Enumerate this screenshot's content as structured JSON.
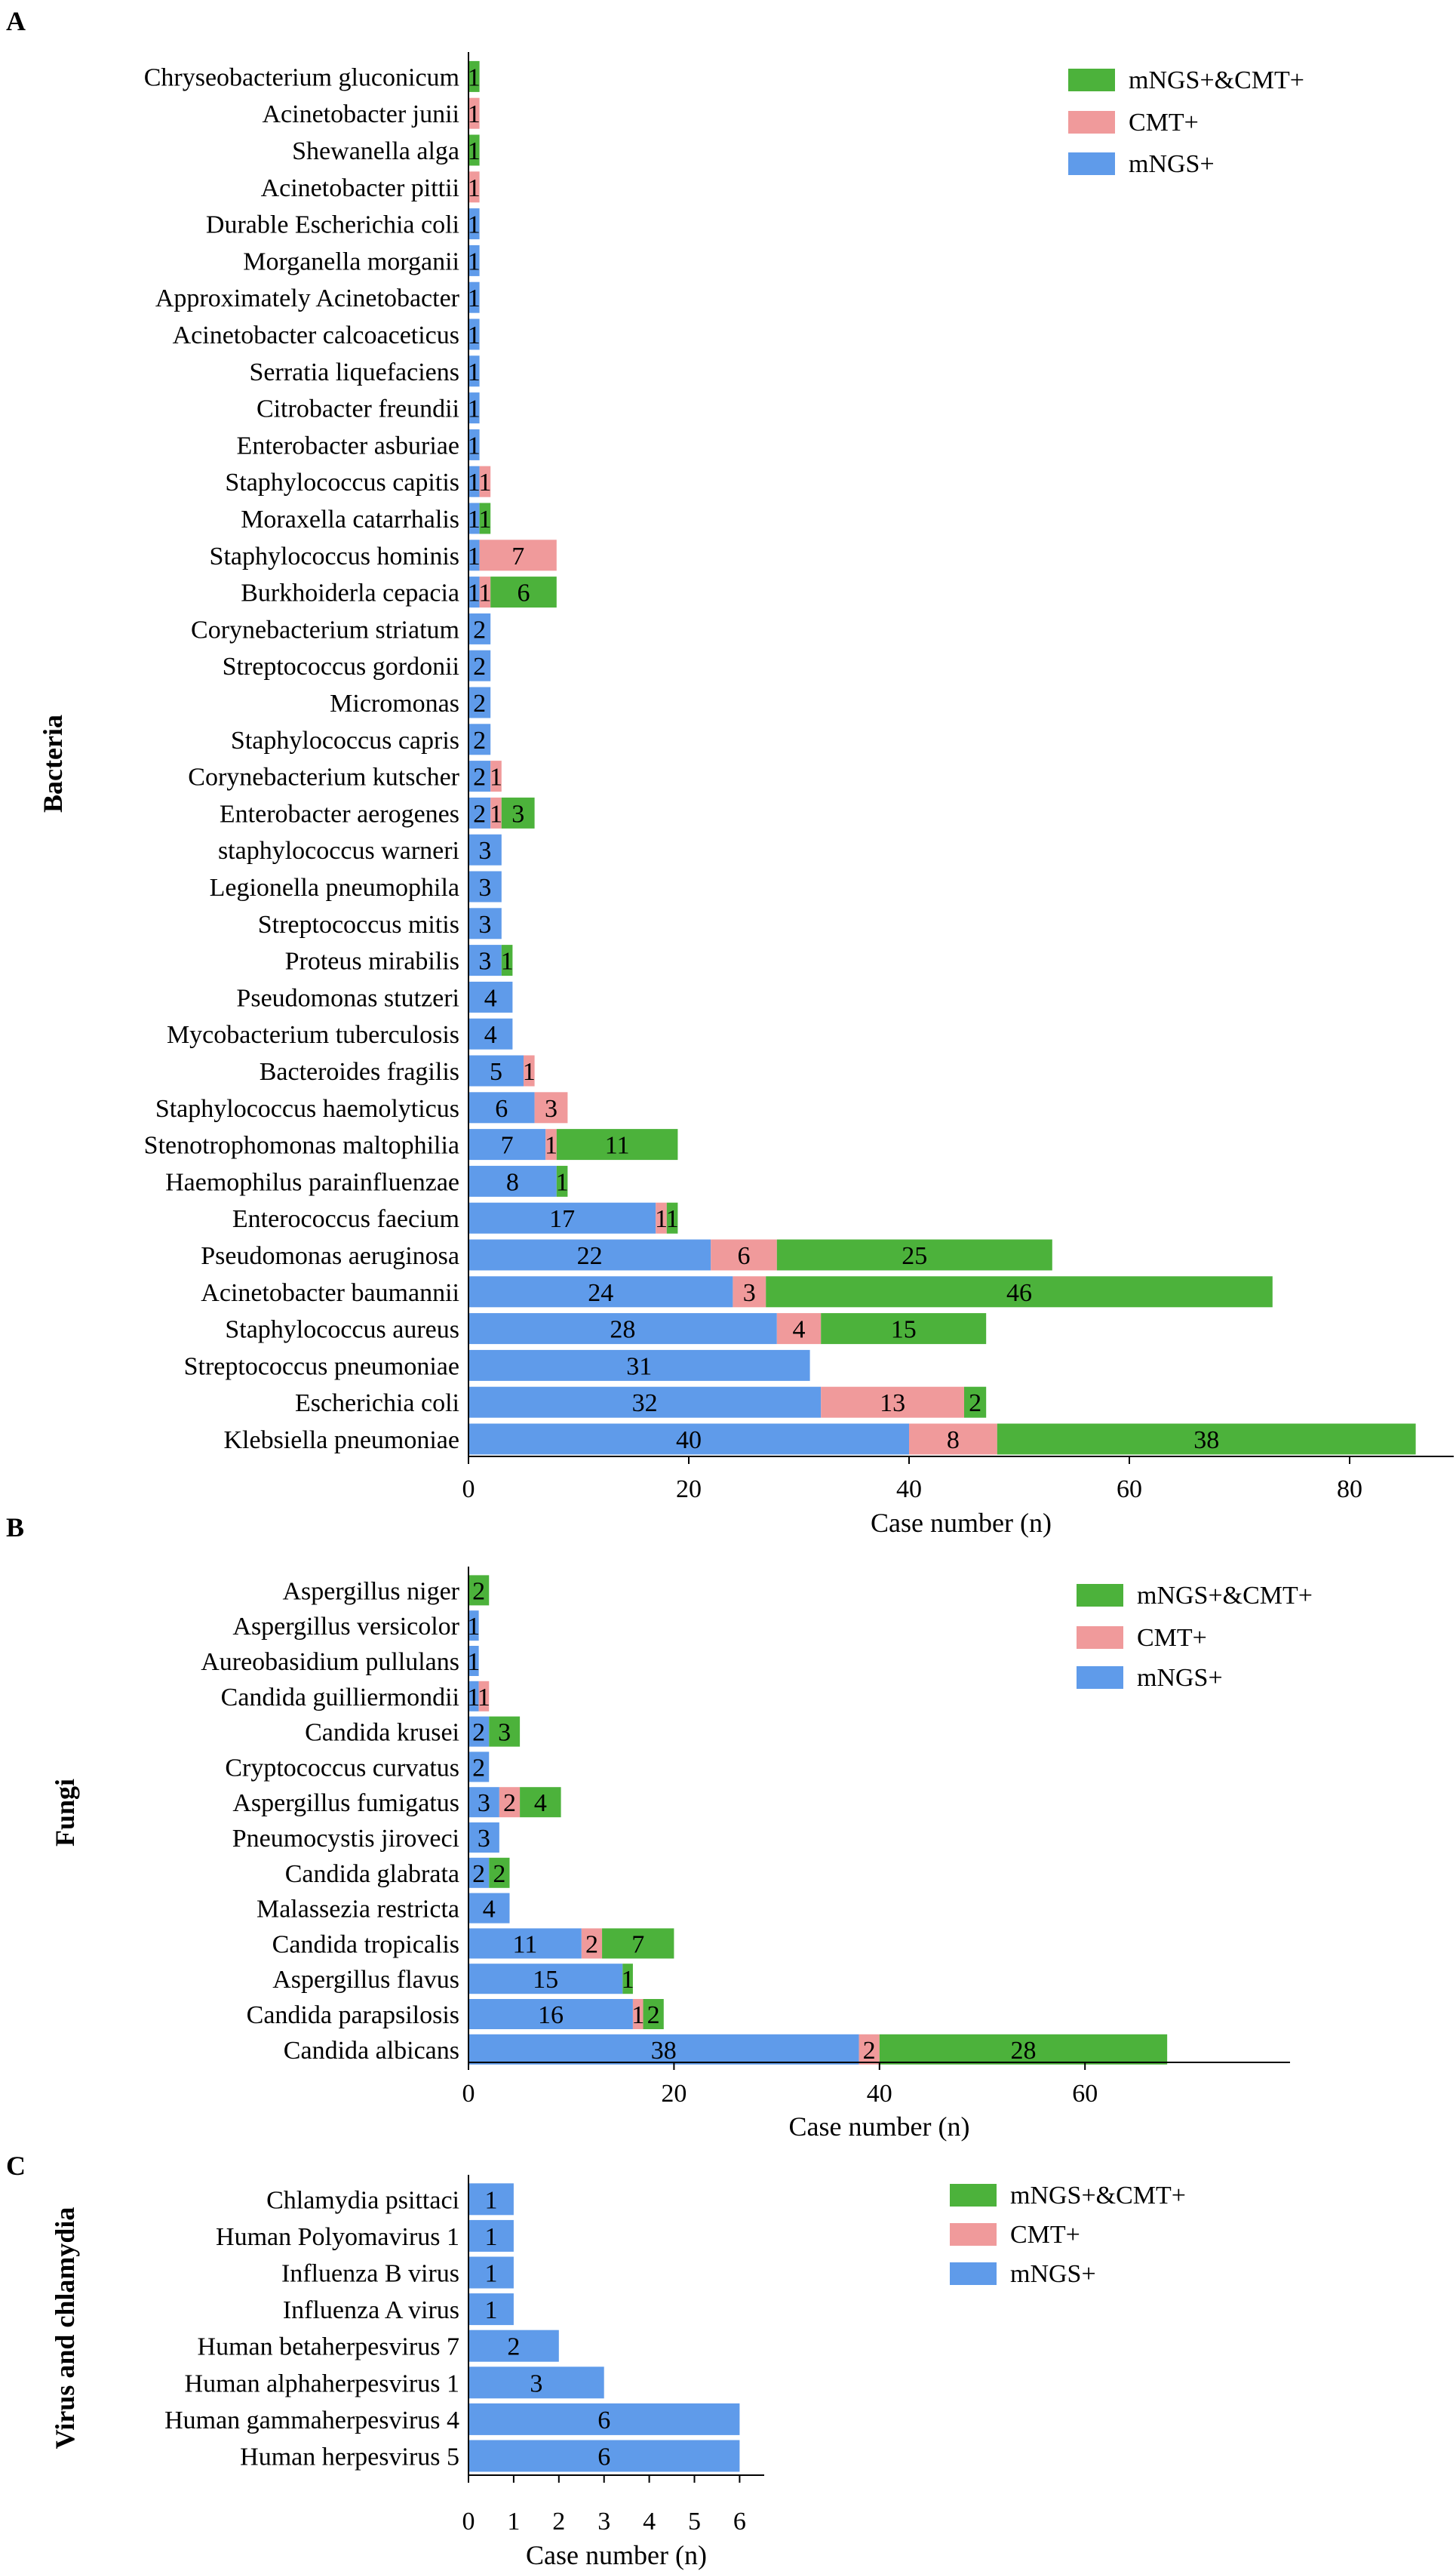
{
  "legend": {
    "both": "mNGS+&CMT+",
    "cmt": "CMT+",
    "mngs": "mNGS+"
  },
  "colors": {
    "both": "#4cb23b",
    "cmt": "#f09a9b",
    "mngs": "#5f9bea"
  },
  "chart_data": [
    {
      "type": "bar",
      "stacked": true,
      "orientation": "horizontal",
      "panel": "A",
      "ylabel": "Bacteria",
      "xlabel": "Case number (n)",
      "xlim": [
        0,
        82
      ],
      "xticks": [
        0,
        20,
        40,
        60,
        80
      ],
      "legend_position": "top-right",
      "series_order": [
        "mNGS+",
        "CMT+",
        "mNGS+&CMT+"
      ],
      "rows": [
        {
          "label": "Chryseobacterium gluconicum",
          "values": [
            0,
            0,
            1
          ]
        },
        {
          "label": "Acinetobacter junii",
          "values": [
            0,
            1,
            0
          ]
        },
        {
          "label": "Shewanella alga",
          "values": [
            0,
            0,
            1
          ]
        },
        {
          "label": "Acinetobacter pittii",
          "values": [
            0,
            1,
            0
          ]
        },
        {
          "label": "Durable Escherichia coli",
          "values": [
            1,
            0,
            0
          ]
        },
        {
          "label": "Morganella morganii",
          "values": [
            1,
            0,
            0
          ]
        },
        {
          "label": "Approximately Acinetobacter",
          "values": [
            1,
            0,
            0
          ]
        },
        {
          "label": "Acinetobacter calcoaceticus",
          "values": [
            1,
            0,
            0
          ]
        },
        {
          "label": "Serratia liquefaciens",
          "values": [
            1,
            0,
            0
          ]
        },
        {
          "label": "Citrobacter freundii",
          "values": [
            1,
            0,
            0
          ]
        },
        {
          "label": "Enterobacter asburiae",
          "values": [
            1,
            0,
            0
          ]
        },
        {
          "label": "Staphylococcus capitis",
          "values": [
            1,
            1,
            0
          ]
        },
        {
          "label": "Moraxella catarrhalis",
          "values": [
            1,
            0,
            1
          ]
        },
        {
          "label": "Staphylococcus hominis",
          "values": [
            1,
            7,
            0
          ]
        },
        {
          "label": "Burkhoiderla cepacia",
          "values": [
            1,
            1,
            6
          ]
        },
        {
          "label": "Corynebacterium striatum",
          "values": [
            2,
            0,
            0
          ]
        },
        {
          "label": "Streptococcus gordonii",
          "values": [
            2,
            0,
            0
          ]
        },
        {
          "label": "Micromonas",
          "values": [
            2,
            0,
            0
          ]
        },
        {
          "label": "Staphylococcus capris",
          "values": [
            2,
            0,
            0
          ]
        },
        {
          "label": "Corynebacterium kutscher",
          "values": [
            2,
            1,
            0
          ]
        },
        {
          "label": "Enterobacter aerogenes",
          "values": [
            2,
            1,
            3
          ]
        },
        {
          "label": "staphylococcus warneri",
          "values": [
            3,
            0,
            0
          ]
        },
        {
          "label": "Legionella pneumophila",
          "values": [
            3,
            0,
            0
          ]
        },
        {
          "label": "Streptococcus mitis",
          "values": [
            3,
            0,
            0
          ]
        },
        {
          "label": "Proteus mirabilis",
          "values": [
            3,
            0,
            1
          ]
        },
        {
          "label": "Pseudomonas stutzeri",
          "values": [
            4,
            0,
            0
          ]
        },
        {
          "label": "Mycobacterium tuberculosis",
          "values": [
            4,
            0,
            0
          ]
        },
        {
          "label": "Bacteroides fragilis",
          "values": [
            5,
            1,
            0
          ]
        },
        {
          "label": "Staphylococcus haemolyticus",
          "values": [
            6,
            3,
            0
          ]
        },
        {
          "label": "Stenotrophomonas maltophilia",
          "values": [
            7,
            1,
            11
          ]
        },
        {
          "label": "Haemophilus parainfluenzae",
          "values": [
            8,
            0,
            1
          ]
        },
        {
          "label": "Enterococcus faecium",
          "values": [
            17,
            1,
            1
          ]
        },
        {
          "label": "Pseudomonas aeruginosa",
          "values": [
            22,
            6,
            25
          ]
        },
        {
          "label": "Acinetobacter baumannii",
          "values": [
            24,
            3,
            46
          ]
        },
        {
          "label": "Staphylococcus aureus",
          "values": [
            28,
            4,
            15
          ]
        },
        {
          "label": "Streptococcus pneumoniae",
          "values": [
            31,
            0,
            0
          ]
        },
        {
          "label": "Escherichia coli",
          "values": [
            32,
            13,
            2
          ]
        },
        {
          "label": "Klebsiella pneumoniae",
          "values": [
            40,
            8,
            38
          ]
        }
      ]
    },
    {
      "type": "bar",
      "stacked": true,
      "orientation": "horizontal",
      "panel": "B",
      "ylabel": "Fungi",
      "xlabel": "Case number (n)",
      "xlim": [
        0,
        74
      ],
      "xticks": [
        0,
        20,
        40,
        60
      ],
      "legend_position": "top-right",
      "series_order": [
        "mNGS+",
        "CMT+",
        "mNGS+&CMT+"
      ],
      "rows": [
        {
          "label": "Aspergillus niger",
          "values": [
            0,
            0,
            2
          ]
        },
        {
          "label": "Aspergillus versicolor",
          "values": [
            1,
            0,
            0
          ]
        },
        {
          "label": "Aureobasidium pullulans",
          "values": [
            1,
            0,
            0
          ]
        },
        {
          "label": "Candida guilliermondii",
          "values": [
            1,
            1,
            0
          ]
        },
        {
          "label": "Candida krusei",
          "values": [
            2,
            0,
            3
          ]
        },
        {
          "label": "Cryptococcus curvatus",
          "values": [
            2,
            0,
            0
          ]
        },
        {
          "label": "Aspergillus fumigatus",
          "values": [
            3,
            2,
            4
          ]
        },
        {
          "label": "Pneumocystis jiroveci",
          "values": [
            3,
            0,
            0
          ]
        },
        {
          "label": "Candida glabrata",
          "values": [
            2,
            0,
            2
          ]
        },
        {
          "label": "Malassezia restricta",
          "values": [
            4,
            0,
            0
          ]
        },
        {
          "label": "Candida tropicalis",
          "values": [
            11,
            2,
            7
          ]
        },
        {
          "label": "Aspergillus flavus",
          "values": [
            15,
            0,
            1
          ]
        },
        {
          "label": "Candida parapsilosis",
          "values": [
            16,
            1,
            2
          ]
        },
        {
          "label": "Candida albicans",
          "values": [
            38,
            2,
            28
          ]
        }
      ]
    },
    {
      "type": "bar",
      "stacked": true,
      "orientation": "horizontal",
      "panel": "C",
      "ylabel": "Virus and chlamydia",
      "xlabel": "Case number (n)",
      "xlim": [
        0,
        6.5
      ],
      "xticks": [
        0,
        1,
        2,
        3,
        4,
        5,
        6
      ],
      "legend_position": "top-right",
      "series_order": [
        "mNGS+",
        "CMT+",
        "mNGS+&CMT+"
      ],
      "rows": [
        {
          "label": "Chlamydia psittaci",
          "values": [
            1,
            0,
            0
          ]
        },
        {
          "label": "Human Polyomavirus 1",
          "values": [
            1,
            0,
            0
          ]
        },
        {
          "label": "Influenza B virus",
          "values": [
            1,
            0,
            0
          ]
        },
        {
          "label": "Influenza A virus",
          "values": [
            1,
            0,
            0
          ]
        },
        {
          "label": "Human betaherpesvirus 7",
          "values": [
            2,
            0,
            0
          ]
        },
        {
          "label": "Human alphaherpesvirus 1",
          "values": [
            3,
            0,
            0
          ]
        },
        {
          "label": "Human gammaherpesvirus 4",
          "values": [
            6,
            0,
            0
          ]
        },
        {
          "label": "Human herpesvirus 5",
          "values": [
            6,
            0,
            0
          ]
        }
      ]
    }
  ]
}
